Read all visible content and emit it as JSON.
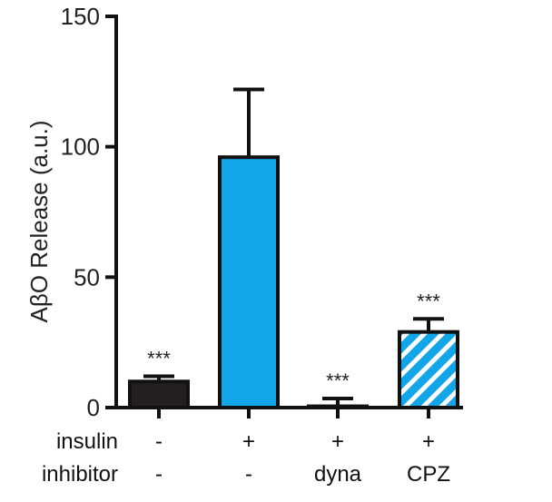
{
  "chart_data": {
    "type": "bar",
    "ylabel": "AβO Release (a.u.)",
    "ylim": [
      0,
      150
    ],
    "yticks": [
      0,
      50,
      100,
      150
    ],
    "bars": [
      {
        "value": 10,
        "error": 2,
        "color": "#231f20",
        "pattern": "solid",
        "significance": "***"
      },
      {
        "value": 96,
        "error": 26,
        "color": "#12a5e8",
        "pattern": "solid",
        "significance": ""
      },
      {
        "value": 0.5,
        "error": 3,
        "color": "#12a5e8",
        "pattern": "solid",
        "significance": "***"
      },
      {
        "value": 29,
        "error": 5,
        "color": "#12a5e8",
        "pattern": "hatched",
        "significance": "***"
      }
    ],
    "condition_rows": [
      {
        "label": "insulin",
        "values": [
          "-",
          "+",
          "+",
          "+"
        ]
      },
      {
        "label": "inhibitor",
        "values": [
          "-",
          "-",
          "dyna",
          "CPZ"
        ]
      }
    ]
  }
}
